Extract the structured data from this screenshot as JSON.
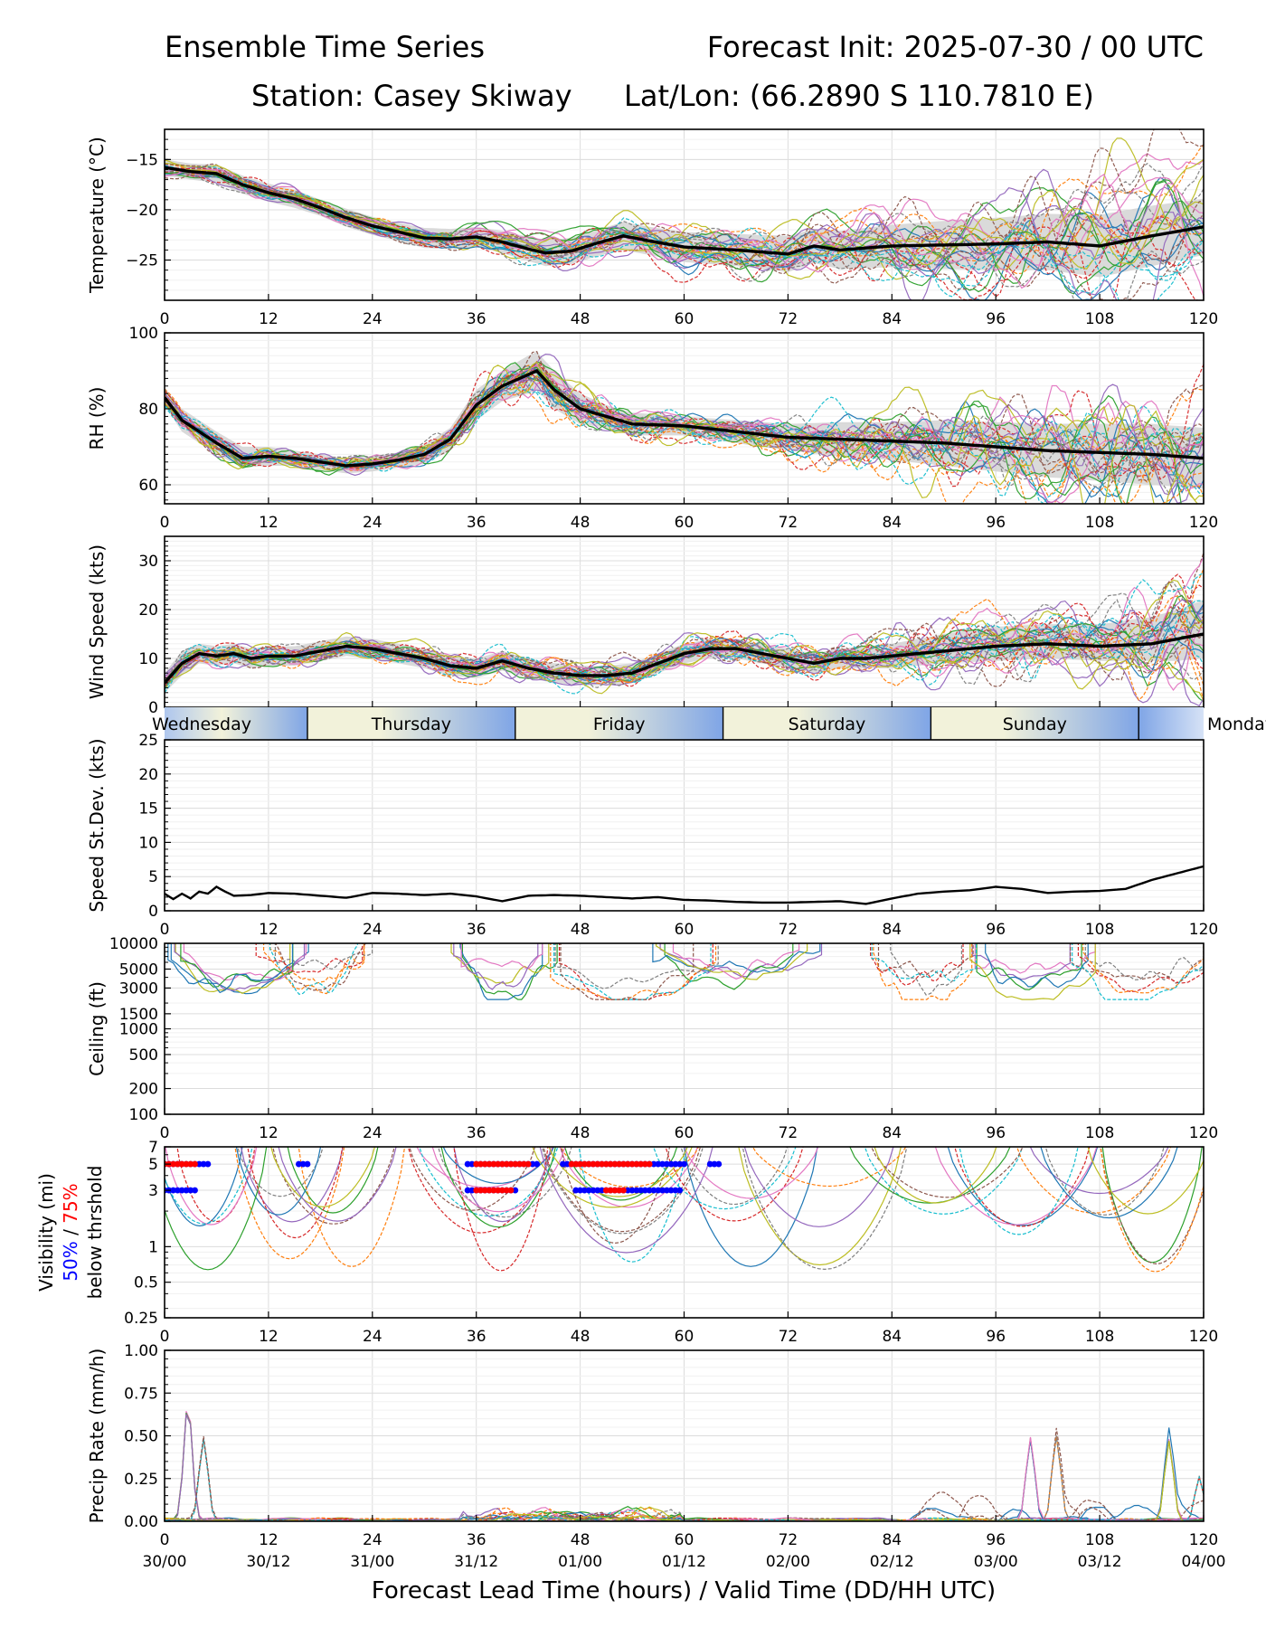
{
  "header": {
    "title_left": "Ensemble Time Series",
    "title_right": "Forecast Init: 2025-07-30 / 00 UTC",
    "station": "Station: Casey Skiway",
    "latlon": "Lat/Lon: (66.2890 S 110.7810 E)"
  },
  "colors": {
    "mean": "#000000",
    "spread_band": "#d3d3d3",
    "member_palette": [
      "#1f77b4",
      "#ff7f0e",
      "#2ca02c",
      "#d62728",
      "#9467bd",
      "#8c564b",
      "#e377c2",
      "#7f7f7f",
      "#bcbd22",
      "#17becf"
    ],
    "threshold_50": "#0000ff",
    "threshold_75": "#ff0000",
    "day_band_light": "#f2f2da",
    "day_band_blue": "#7fa5e6"
  },
  "xaxis": {
    "lead_ticks": [
      "0",
      "12",
      "24",
      "36",
      "48",
      "60",
      "72",
      "84",
      "96",
      "108",
      "120"
    ],
    "valid_ticks": [
      "30/00",
      "30/12",
      "31/00",
      "31/12",
      "01/00",
      "01/12",
      "02/00",
      "02/12",
      "03/00",
      "03/12",
      "04/00"
    ],
    "label": "Forecast Lead Time (hours) / Valid Time (DD/HH UTC)",
    "range": [
      0,
      120
    ]
  },
  "day_bar": {
    "days": [
      {
        "name": "Wednesday",
        "start": 0,
        "end": 16.5
      },
      {
        "name": "Thursday",
        "start": 16.5,
        "end": 40.5
      },
      {
        "name": "Friday",
        "start": 40.5,
        "end": 64.5
      },
      {
        "name": "Saturday",
        "start": 64.5,
        "end": 88.5
      },
      {
        "name": "Sunday",
        "start": 88.5,
        "end": 112.5
      },
      {
        "name": "Monday",
        "start": 112.5,
        "end": 120
      }
    ]
  },
  "chart_data": [
    {
      "type": "line",
      "id": "temperature",
      "ylabel": "Temperature (°C)",
      "ylim": [
        -29,
        -12
      ],
      "yticks": [
        -15,
        -20,
        -25
      ],
      "ytick_labels": [
        "−15",
        "−20",
        "−25"
      ],
      "grid": true,
      "ensemble_members": 30,
      "spread_band": true,
      "x": [
        0,
        3,
        6,
        9,
        12,
        15,
        18,
        21,
        24,
        27,
        30,
        33,
        36,
        39,
        42,
        44,
        47,
        50,
        53,
        56,
        60,
        66,
        72,
        75,
        78,
        81,
        84,
        90,
        96,
        102,
        108,
        114,
        120
      ],
      "series": [
        {
          "role": "mean",
          "values": [
            -15.8,
            -16.2,
            -16.4,
            -17.5,
            -18.3,
            -18.9,
            -19.8,
            -20.8,
            -21.6,
            -22.2,
            -22.8,
            -22.9,
            -22.7,
            -23.2,
            -23.9,
            -24.3,
            -24.1,
            -23.3,
            -22.6,
            -23.1,
            -23.7,
            -24.0,
            -24.4,
            -23.6,
            -24.0,
            -23.8,
            -23.6,
            -23.5,
            -23.4,
            -23.2,
            -23.6,
            -22.6,
            -21.7
          ]
        },
        {
          "role": "spread_upper",
          "values": [
            -15.0,
            -15.4,
            -15.5,
            -16.6,
            -17.4,
            -18.0,
            -19.0,
            -19.9,
            -20.7,
            -21.3,
            -21.8,
            -21.9,
            -21.7,
            -22.1,
            -22.7,
            -23.0,
            -22.8,
            -22.0,
            -21.2,
            -21.7,
            -22.2,
            -22.4,
            -22.6,
            -21.9,
            -22.1,
            -21.8,
            -21.5,
            -21.1,
            -20.8,
            -20.4,
            -20.5,
            -19.6,
            -18.9
          ]
        },
        {
          "role": "spread_lower",
          "values": [
            -16.6,
            -17.0,
            -17.3,
            -18.4,
            -19.2,
            -19.8,
            -20.6,
            -21.7,
            -22.5,
            -23.1,
            -23.8,
            -23.9,
            -23.7,
            -24.3,
            -25.1,
            -25.6,
            -25.4,
            -24.6,
            -24.0,
            -24.5,
            -25.2,
            -25.6,
            -26.2,
            -25.3,
            -25.9,
            -25.8,
            -25.7,
            -25.9,
            -26.0,
            -26.0,
            -26.7,
            -25.6,
            -24.5
          ]
        }
      ]
    },
    {
      "type": "line",
      "id": "rh",
      "ylabel": "RH (%)",
      "ylim": [
        55,
        100
      ],
      "yticks": [
        60,
        80,
        100
      ],
      "ytick_labels": [
        "60",
        "80",
        "100"
      ],
      "grid": true,
      "ensemble_members": 30,
      "spread_band": true,
      "x": [
        0,
        2,
        4,
        6,
        9,
        12,
        15,
        18,
        21,
        24,
        27,
        30,
        33,
        36,
        39,
        42,
        43,
        45,
        48,
        51,
        54,
        60,
        66,
        72,
        78,
        84,
        90,
        96,
        102,
        108,
        114,
        120
      ],
      "series": [
        {
          "role": "mean",
          "values": [
            83,
            77,
            74,
            71,
            67,
            67.5,
            67,
            66,
            65,
            65.5,
            66.5,
            68,
            72,
            81,
            86,
            89,
            90,
            85,
            80,
            78,
            76,
            75.5,
            74,
            72.5,
            72,
            71.5,
            71,
            70,
            69,
            68.5,
            68,
            67
          ]
        },
        {
          "role": "spread_upper",
          "values": [
            85,
            80,
            77,
            74,
            70,
            70,
            69,
            68,
            67,
            67.5,
            68.5,
            70.5,
            75,
            85,
            90,
            94,
            95,
            90,
            84,
            81,
            79,
            78,
            77,
            76,
            76.5,
            76.5,
            77,
            76.5,
            76,
            76,
            76,
            75
          ]
        },
        {
          "role": "spread_lower",
          "values": [
            81,
            74,
            71,
            68,
            64.5,
            65,
            65,
            64,
            63,
            63.5,
            64.5,
            65.5,
            69,
            77,
            82,
            84,
            85,
            80,
            76,
            75,
            73,
            73,
            71,
            69,
            67.5,
            66.5,
            65,
            63.5,
            62,
            61,
            60,
            59
          ]
        }
      ]
    },
    {
      "type": "line",
      "id": "wind_speed",
      "ylabel": "Wind Speed (kts)",
      "ylim": [
        0,
        35
      ],
      "yticks": [
        0,
        10,
        20,
        30
      ],
      "ytick_labels": [
        "0",
        "10",
        "20",
        "30"
      ],
      "grid": true,
      "ensemble_members": 30,
      "spread_band": true,
      "x": [
        0,
        2,
        4,
        6,
        8,
        10,
        12,
        15,
        18,
        21,
        24,
        27,
        30,
        33,
        36,
        39,
        42,
        45,
        48,
        51,
        54,
        57,
        60,
        63,
        66,
        69,
        72,
        75,
        78,
        81,
        84,
        87,
        90,
        96,
        102,
        108,
        114,
        117,
        120
      ],
      "series": [
        {
          "role": "mean",
          "values": [
            5,
            9,
            11,
            10.5,
            11,
            10,
            10.5,
            10.5,
            11.5,
            12.5,
            12,
            11,
            10,
            8.5,
            8,
            9.5,
            8,
            7,
            6.5,
            6.5,
            7,
            9,
            11,
            12,
            12,
            11,
            10,
            9,
            10,
            10,
            10.5,
            11,
            11.5,
            12.5,
            13,
            12.5,
            13,
            14,
            15
          ]
        },
        {
          "role": "spread_upper",
          "values": [
            7,
            11.5,
            13,
            12.5,
            13,
            12,
            12.5,
            12.5,
            13.5,
            14.5,
            14,
            13,
            12,
            10.5,
            10,
            11.5,
            10,
            9,
            8.5,
            8.5,
            9,
            11,
            13,
            14,
            14,
            13,
            12,
            11,
            12,
            12.5,
            13,
            14,
            15,
            16.5,
            17,
            17,
            18.5,
            20,
            22
          ]
        },
        {
          "role": "spread_lower",
          "values": [
            3,
            6.5,
            9,
            8.5,
            9,
            8,
            8.5,
            8.5,
            9.5,
            10.5,
            10,
            9,
            8,
            6.5,
            6,
            7.5,
            6,
            5,
            4.5,
            4.5,
            5,
            7,
            9,
            10,
            10,
            9,
            8,
            7,
            8,
            8,
            8,
            8.5,
            9,
            9.5,
            10,
            9.5,
            9.5,
            9.5,
            10
          ]
        }
      ]
    },
    {
      "type": "line",
      "id": "speed_stdev",
      "ylabel": "Speed St.Dev. (kts)",
      "ylim": [
        0,
        25
      ],
      "yticks": [
        0,
        5,
        10,
        15,
        20,
        25
      ],
      "ytick_labels": [
        "0",
        "5",
        "10",
        "15",
        "20",
        "25"
      ],
      "grid": true,
      "x": [
        0,
        1,
        2,
        3,
        4,
        5,
        6,
        7,
        8,
        10,
        12,
        15,
        18,
        21,
        24,
        27,
        30,
        33,
        36,
        39,
        42,
        45,
        48,
        51,
        54,
        57,
        60,
        63,
        66,
        69,
        72,
        75,
        78,
        81,
        84,
        87,
        90,
        93,
        96,
        99,
        102,
        105,
        108,
        111,
        114,
        117,
        120
      ],
      "series": [
        {
          "role": "stdev",
          "values": [
            2.5,
            1.7,
            2.5,
            1.8,
            2.8,
            2.5,
            3.5,
            2.8,
            2.2,
            2.3,
            2.6,
            2.5,
            2.2,
            1.9,
            2.6,
            2.5,
            2.3,
            2.5,
            2.1,
            1.4,
            2.2,
            2.3,
            2.2,
            2.0,
            1.8,
            2.0,
            1.6,
            1.5,
            1.3,
            1.2,
            1.2,
            1.3,
            1.4,
            1.0,
            1.8,
            2.5,
            2.8,
            3.0,
            3.5,
            3.2,
            2.6,
            2.8,
            2.9,
            3.2,
            4.5,
            5.5,
            6.5
          ]
        }
      ]
    },
    {
      "type": "line",
      "id": "ceiling",
      "ylabel": "Ceiling (ft)",
      "yscale": "log",
      "ylim": [
        100,
        10000
      ],
      "yticks": [
        100,
        200,
        500,
        1000,
        1500,
        3000,
        5000,
        10000
      ],
      "ytick_labels": [
        "100",
        "200",
        "500",
        "1000",
        "1500",
        "3000",
        "5000",
        "10000"
      ],
      "grid": true,
      "ensemble_members": 30
    },
    {
      "type": "line",
      "id": "visibility",
      "ylabel": "Visibility (mi)",
      "ylabel_parts": [
        "Visibility (mi)",
        "50%",
        "/",
        "75%",
        "below thrshold"
      ],
      "yscale": "log",
      "ylim": [
        0.25,
        7
      ],
      "yticks": [
        0.25,
        0.5,
        1,
        3,
        5,
        7
      ],
      "ytick_labels": [
        "0.25",
        "0.5",
        "1",
        "3",
        "5",
        "7"
      ],
      "grid": true,
      "ensemble_members": 30,
      "threshold_markers": [
        {
          "level": 5,
          "pct": "50%",
          "ranges": [
            [
              0,
              5
            ],
            [
              15.5,
              16.5
            ],
            [
              35,
              43
            ],
            [
              46,
              60
            ],
            [
              63,
              64
            ]
          ]
        },
        {
          "level": 5,
          "pct": "75%",
          "ranges": [
            [
              0,
              3.5
            ],
            [
              36,
              42
            ],
            [
              47,
              56
            ]
          ]
        },
        {
          "level": 3,
          "pct": "50%",
          "ranges": [
            [
              0,
              3.5
            ],
            [
              35,
              40.5
            ],
            [
              47.5,
              59.5
            ]
          ]
        },
        {
          "level": 3,
          "pct": "75%",
          "ranges": [
            [
              36,
              40
            ],
            [
              51,
              53
            ]
          ]
        }
      ]
    },
    {
      "type": "line",
      "id": "precip_rate",
      "ylabel": "Precip Rate (mm/h)",
      "ylim": [
        0,
        1
      ],
      "yticks": [
        0,
        0.25,
        0.5,
        0.75,
        1.0
      ],
      "ytick_labels": [
        "0.00",
        "0.25",
        "0.50",
        "0.75",
        "1.00"
      ],
      "grid": true,
      "ensemble_members": 30,
      "peaks": [
        {
          "x": 2.7,
          "value": 0.68
        },
        {
          "x": 4.5,
          "value": 0.48
        },
        {
          "x": 100,
          "value": 0.48
        },
        {
          "x": 103,
          "value": 0.5
        },
        {
          "x": 116,
          "value": 0.47
        },
        {
          "x": 119.5,
          "value": 0.26
        }
      ]
    }
  ]
}
